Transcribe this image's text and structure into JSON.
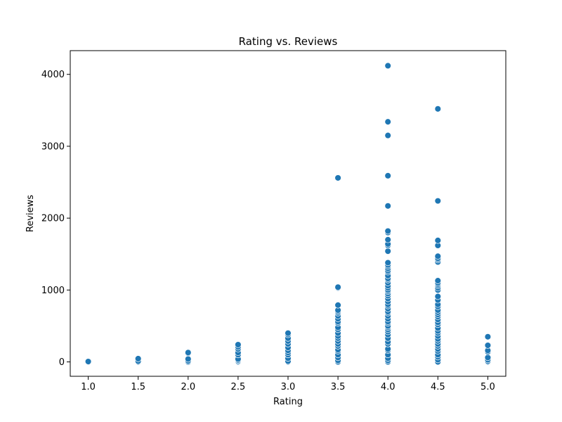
{
  "chart_data": {
    "type": "scatter",
    "title": "Rating vs. Reviews",
    "xlabel": "Rating",
    "ylabel": "Reviews",
    "xlim": [
      0.82,
      5.18
    ],
    "ylim": [
      -200,
      4330
    ],
    "xticks": [
      1.0,
      1.5,
      2.0,
      2.5,
      3.0,
      3.5,
      4.0,
      4.5,
      5.0
    ],
    "xtick_labels": [
      "1.0",
      "1.5",
      "2.0",
      "2.5",
      "3.0",
      "3.5",
      "4.0",
      "4.5",
      "5.0"
    ],
    "yticks": [
      0,
      1000,
      2000,
      3000,
      4000
    ],
    "ytick_labels": [
      "0",
      "1000",
      "2000",
      "3000",
      "4000"
    ],
    "grid": false,
    "marker_color": "#1f77b4",
    "marker_edge_color": "#ffffff",
    "points": [
      {
        "x": 1.0,
        "y": 0
      },
      {
        "x": 1.0,
        "y": 5
      },
      {
        "x": 1.5,
        "y": 0
      },
      {
        "x": 1.5,
        "y": 10
      },
      {
        "x": 1.5,
        "y": 45
      },
      {
        "x": 2.0,
        "y": 0
      },
      {
        "x": 2.0,
        "y": 15
      },
      {
        "x": 2.0,
        "y": 40
      },
      {
        "x": 2.0,
        "y": 120
      },
      {
        "x": 2.0,
        "y": 130
      },
      {
        "x": 2.5,
        "y": 0
      },
      {
        "x": 2.5,
        "y": 10
      },
      {
        "x": 2.5,
        "y": 25
      },
      {
        "x": 2.5,
        "y": 40
      },
      {
        "x": 2.5,
        "y": 100
      },
      {
        "x": 2.5,
        "y": 130
      },
      {
        "x": 2.5,
        "y": 180
      },
      {
        "x": 2.5,
        "y": 210
      },
      {
        "x": 2.5,
        "y": 240
      },
      {
        "x": 3.0,
        "y": 0
      },
      {
        "x": 3.0,
        "y": 10
      },
      {
        "x": 3.0,
        "y": 50
      },
      {
        "x": 3.0,
        "y": 100
      },
      {
        "x": 3.0,
        "y": 130
      },
      {
        "x": 3.0,
        "y": 160
      },
      {
        "x": 3.0,
        "y": 200
      },
      {
        "x": 3.0,
        "y": 250
      },
      {
        "x": 3.0,
        "y": 290
      },
      {
        "x": 3.0,
        "y": 330
      },
      {
        "x": 3.0,
        "y": 380
      },
      {
        "x": 3.0,
        "y": 400
      },
      {
        "x": 3.5,
        "y": 0
      },
      {
        "x": 3.5,
        "y": 20
      },
      {
        "x": 3.5,
        "y": 60
      },
      {
        "x": 3.5,
        "y": 100
      },
      {
        "x": 3.5,
        "y": 150
      },
      {
        "x": 3.5,
        "y": 170
      },
      {
        "x": 3.5,
        "y": 220
      },
      {
        "x": 3.5,
        "y": 250
      },
      {
        "x": 3.5,
        "y": 290
      },
      {
        "x": 3.5,
        "y": 330
      },
      {
        "x": 3.5,
        "y": 360
      },
      {
        "x": 3.5,
        "y": 400
      },
      {
        "x": 3.5,
        "y": 450
      },
      {
        "x": 3.5,
        "y": 480
      },
      {
        "x": 3.5,
        "y": 540
      },
      {
        "x": 3.5,
        "y": 560
      },
      {
        "x": 3.5,
        "y": 600
      },
      {
        "x": 3.5,
        "y": 640
      },
      {
        "x": 3.5,
        "y": 680
      },
      {
        "x": 3.5,
        "y": 700
      },
      {
        "x": 3.5,
        "y": 720
      },
      {
        "x": 3.5,
        "y": 790
      },
      {
        "x": 3.5,
        "y": 1030
      },
      {
        "x": 3.5,
        "y": 1040
      },
      {
        "x": 3.5,
        "y": 2560
      },
      {
        "x": 4.0,
        "y": 0
      },
      {
        "x": 4.0,
        "y": 20
      },
      {
        "x": 4.0,
        "y": 50
      },
      {
        "x": 4.0,
        "y": 100
      },
      {
        "x": 4.0,
        "y": 160
      },
      {
        "x": 4.0,
        "y": 180
      },
      {
        "x": 4.0,
        "y": 250
      },
      {
        "x": 4.0,
        "y": 280
      },
      {
        "x": 4.0,
        "y": 330
      },
      {
        "x": 4.0,
        "y": 380
      },
      {
        "x": 4.0,
        "y": 420
      },
      {
        "x": 4.0,
        "y": 450
      },
      {
        "x": 4.0,
        "y": 480
      },
      {
        "x": 4.0,
        "y": 500
      },
      {
        "x": 4.0,
        "y": 540
      },
      {
        "x": 4.0,
        "y": 560
      },
      {
        "x": 4.0,
        "y": 600
      },
      {
        "x": 4.0,
        "y": 640
      },
      {
        "x": 4.0,
        "y": 680
      },
      {
        "x": 4.0,
        "y": 700
      },
      {
        "x": 4.0,
        "y": 740
      },
      {
        "x": 4.0,
        "y": 780
      },
      {
        "x": 4.0,
        "y": 800
      },
      {
        "x": 4.0,
        "y": 840
      },
      {
        "x": 4.0,
        "y": 880
      },
      {
        "x": 4.0,
        "y": 920
      },
      {
        "x": 4.0,
        "y": 950
      },
      {
        "x": 4.0,
        "y": 980
      },
      {
        "x": 4.0,
        "y": 1000
      },
      {
        "x": 4.0,
        "y": 1030
      },
      {
        "x": 4.0,
        "y": 1060
      },
      {
        "x": 4.0,
        "y": 1100
      },
      {
        "x": 4.0,
        "y": 1140
      },
      {
        "x": 4.0,
        "y": 1160
      },
      {
        "x": 4.0,
        "y": 1200
      },
      {
        "x": 4.0,
        "y": 1250
      },
      {
        "x": 4.0,
        "y": 1270
      },
      {
        "x": 4.0,
        "y": 1300
      },
      {
        "x": 4.0,
        "y": 1330
      },
      {
        "x": 4.0,
        "y": 1350
      },
      {
        "x": 4.0,
        "y": 1380
      },
      {
        "x": 4.0,
        "y": 1540
      },
      {
        "x": 4.0,
        "y": 1620
      },
      {
        "x": 4.0,
        "y": 1640
      },
      {
        "x": 4.0,
        "y": 1700
      },
      {
        "x": 4.0,
        "y": 1800
      },
      {
        "x": 4.0,
        "y": 1820
      },
      {
        "x": 4.0,
        "y": 2170
      },
      {
        "x": 4.0,
        "y": 2590
      },
      {
        "x": 4.0,
        "y": 3150
      },
      {
        "x": 4.0,
        "y": 3340
      },
      {
        "x": 4.0,
        "y": 4120
      },
      {
        "x": 4.5,
        "y": 0
      },
      {
        "x": 4.5,
        "y": 30
      },
      {
        "x": 4.5,
        "y": 70
      },
      {
        "x": 4.5,
        "y": 100
      },
      {
        "x": 4.5,
        "y": 150
      },
      {
        "x": 4.5,
        "y": 180
      },
      {
        "x": 4.5,
        "y": 220
      },
      {
        "x": 4.5,
        "y": 250
      },
      {
        "x": 4.5,
        "y": 290
      },
      {
        "x": 4.5,
        "y": 320
      },
      {
        "x": 4.5,
        "y": 360
      },
      {
        "x": 4.5,
        "y": 400
      },
      {
        "x": 4.5,
        "y": 430
      },
      {
        "x": 4.5,
        "y": 470
      },
      {
        "x": 4.5,
        "y": 520
      },
      {
        "x": 4.5,
        "y": 550
      },
      {
        "x": 4.5,
        "y": 590
      },
      {
        "x": 4.5,
        "y": 630
      },
      {
        "x": 4.5,
        "y": 660
      },
      {
        "x": 4.5,
        "y": 690
      },
      {
        "x": 4.5,
        "y": 720
      },
      {
        "x": 4.5,
        "y": 770
      },
      {
        "x": 4.5,
        "y": 800
      },
      {
        "x": 4.5,
        "y": 860
      },
      {
        "x": 4.5,
        "y": 910
      },
      {
        "x": 4.5,
        "y": 1000
      },
      {
        "x": 4.5,
        "y": 1030
      },
      {
        "x": 4.5,
        "y": 1060
      },
      {
        "x": 4.5,
        "y": 1080
      },
      {
        "x": 4.5,
        "y": 1100
      },
      {
        "x": 4.5,
        "y": 1130
      },
      {
        "x": 4.5,
        "y": 1390
      },
      {
        "x": 4.5,
        "y": 1420
      },
      {
        "x": 4.5,
        "y": 1440
      },
      {
        "x": 4.5,
        "y": 1470
      },
      {
        "x": 4.5,
        "y": 1620
      },
      {
        "x": 4.5,
        "y": 1690
      },
      {
        "x": 4.5,
        "y": 2240
      },
      {
        "x": 4.5,
        "y": 3520
      },
      {
        "x": 5.0,
        "y": 0
      },
      {
        "x": 5.0,
        "y": 10
      },
      {
        "x": 5.0,
        "y": 30
      },
      {
        "x": 5.0,
        "y": 60
      },
      {
        "x": 5.0,
        "y": 140
      },
      {
        "x": 5.0,
        "y": 160
      },
      {
        "x": 5.0,
        "y": 230
      },
      {
        "x": 5.0,
        "y": 350
      }
    ]
  }
}
